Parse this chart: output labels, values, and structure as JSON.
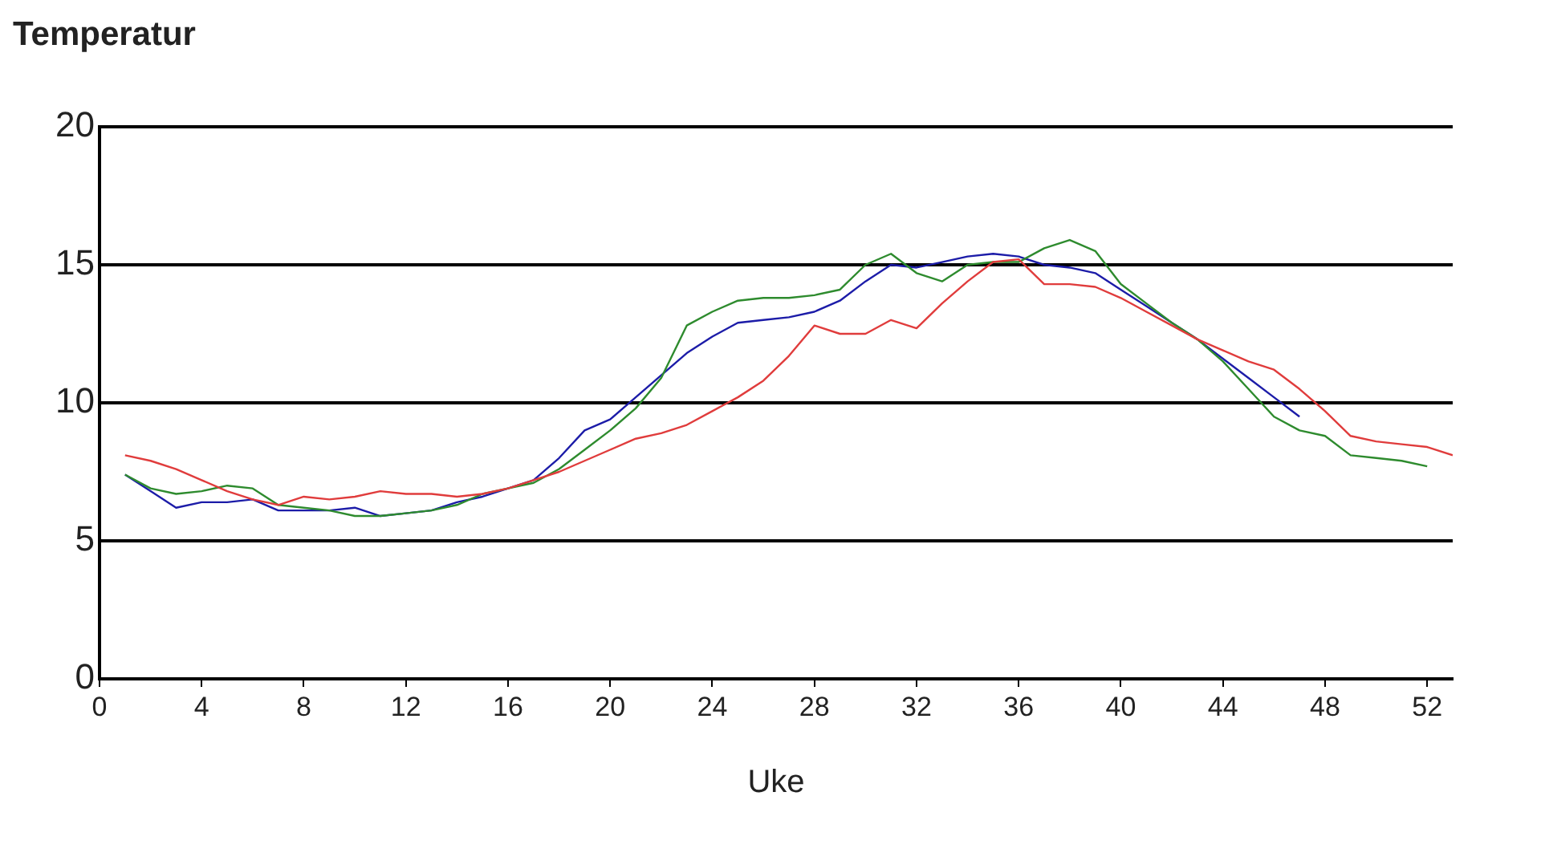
{
  "chart_data": {
    "type": "line",
    "ylabel": "Temperatur",
    "xlabel": "Uke",
    "xlim": [
      0,
      53
    ],
    "xticks": [
      0,
      4,
      8,
      12,
      16,
      20,
      24,
      28,
      32,
      36,
      40,
      44,
      48,
      52
    ],
    "ylim": [
      0,
      20
    ],
    "yticks": [
      0,
      5,
      10,
      15,
      20
    ],
    "grid": "y",
    "legend": false,
    "marker": "none",
    "line_style": "solid",
    "x": [
      1,
      2,
      3,
      4,
      5,
      6,
      7,
      8,
      9,
      10,
      11,
      12,
      13,
      14,
      15,
      16,
      17,
      18,
      19,
      20,
      21,
      22,
      23,
      24,
      25,
      26,
      27,
      28,
      29,
      30,
      31,
      32,
      33,
      34,
      35,
      36,
      37,
      38,
      39,
      40,
      41,
      42,
      43,
      44,
      45,
      46,
      47,
      48,
      49,
      50,
      51,
      52,
      53
    ],
    "series": [
      {
        "color": "#e03c3c",
        "values": [
          8.1,
          7.9,
          7.6,
          7.2,
          6.8,
          6.5,
          6.3,
          6.6,
          6.5,
          6.6,
          6.8,
          6.7,
          6.7,
          6.6,
          6.7,
          6.9,
          7.2,
          7.5,
          7.9,
          8.3,
          8.7,
          8.9,
          9.2,
          9.7,
          10.2,
          10.8,
          11.7,
          12.8,
          12.5,
          12.5,
          13.0,
          12.7,
          13.6,
          14.4,
          15.1,
          15.2,
          14.3,
          14.3,
          14.2,
          13.8,
          13.3,
          12.8,
          12.3,
          11.9,
          11.5,
          11.2,
          10.5,
          9.7,
          8.8,
          8.6,
          8.5,
          8.4,
          8.1
        ]
      },
      {
        "color": "#2e8b2e",
        "values": [
          7.4,
          6.9,
          6.7,
          6.8,
          7.0,
          6.9,
          6.3,
          6.2,
          6.1,
          5.9,
          5.9,
          6.0,
          6.1,
          6.3,
          6.7,
          6.9,
          7.1,
          7.6,
          8.3,
          9.0,
          9.8,
          10.9,
          12.8,
          13.3,
          13.7,
          13.8,
          13.8,
          13.9,
          14.1,
          15.0,
          15.4,
          14.7,
          14.4,
          15.0,
          15.1,
          15.1,
          15.6,
          15.9,
          15.5,
          14.3,
          13.6,
          12.9,
          12.3,
          11.5,
          10.5,
          9.5,
          9.0,
          8.8,
          8.1,
          8.0,
          7.9,
          7.7,
          null
        ]
      },
      {
        "color": "#1c1ca8",
        "values": [
          7.4,
          6.8,
          6.2,
          6.4,
          6.4,
          6.5,
          6.1,
          6.1,
          6.1,
          6.2,
          5.9,
          6.0,
          6.1,
          6.4,
          6.6,
          6.9,
          7.2,
          8.0,
          9.0,
          9.4,
          10.2,
          11.0,
          11.8,
          12.4,
          12.9,
          13.0,
          13.1,
          13.3,
          13.7,
          14.4,
          15.0,
          14.9,
          15.1,
          15.3,
          15.4,
          15.3,
          15.0,
          14.9,
          14.7,
          14.1,
          13.5,
          12.9,
          12.3,
          11.6,
          10.9,
          10.2,
          9.5,
          null,
          null,
          null,
          null,
          null,
          null
        ]
      }
    ]
  }
}
